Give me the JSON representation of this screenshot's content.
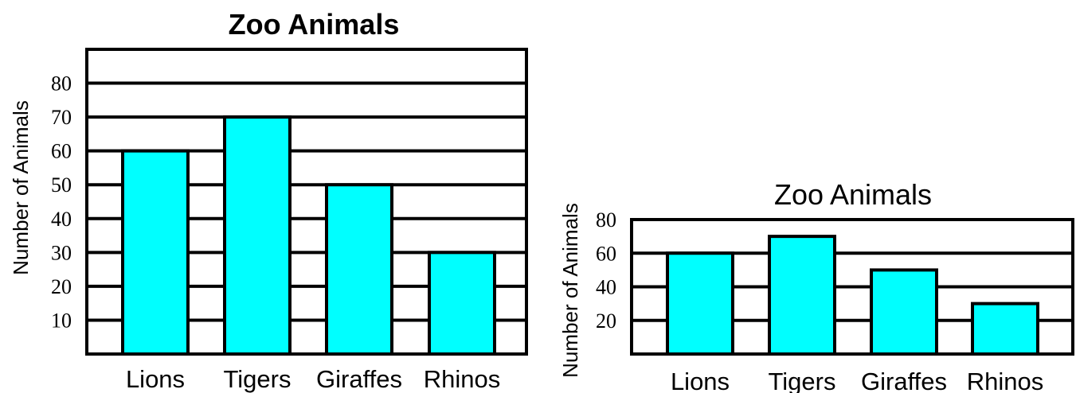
{
  "chart_data": [
    {
      "type": "bar",
      "title": "Zoo Animals",
      "title_weight": "bold",
      "xlabel": "",
      "ylabel": "Number of Animals",
      "categories": [
        "Lions",
        "Tigers",
        "Giraffes",
        "Rhinos"
      ],
      "values": [
        60,
        70,
        50,
        30
      ],
      "ylim": [
        0,
        90
      ],
      "yticks": [
        10,
        20,
        30,
        40,
        50,
        60,
        70,
        80
      ],
      "grid": true,
      "bar_color": "#00FFFF",
      "outline_color": "#000000"
    },
    {
      "type": "bar",
      "title": "Zoo Animals",
      "title_weight": "normal",
      "xlabel": "",
      "ylabel": "Number of Animals",
      "categories": [
        "Lions",
        "Tigers",
        "Giraffes",
        "Rhinos"
      ],
      "values": [
        60,
        70,
        50,
        30
      ],
      "ylim": [
        0,
        80
      ],
      "yticks": [
        20,
        40,
        60,
        80
      ],
      "grid": true,
      "bar_color": "#00FFFF",
      "outline_color": "#000000"
    }
  ]
}
